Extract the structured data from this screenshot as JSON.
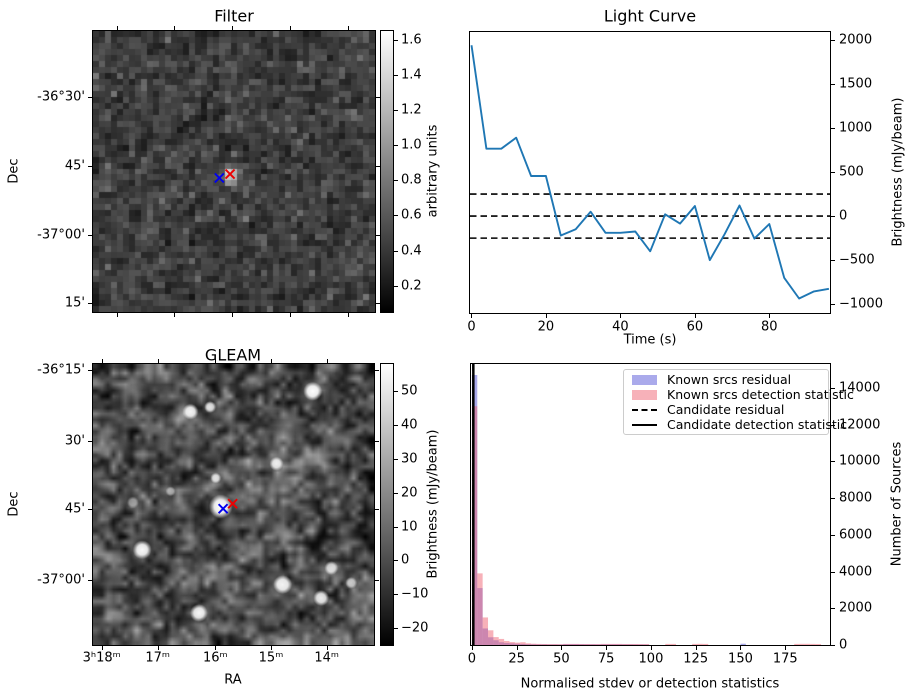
{
  "figure": {
    "background": "#ffffff"
  },
  "colors": {
    "line_blue": "#1f77b4",
    "marker_blue": "#0000ee",
    "marker_red": "#ee0000",
    "hist_blue": "rgba(85,85,215,0.5)",
    "hist_pink": "rgba(240,100,115,0.5)",
    "black": "#000000"
  },
  "chart_data": [
    {
      "type": "heatmap",
      "title": "Filter",
      "ylabel": "Dec",
      "description": "grayscale random-noise sky image, nearest-neighbour pixels, blue and red x markers near centre with a bright spot",
      "yticks": [
        {
          "label": "-36°30'",
          "f": 0.2349
        },
        {
          "label": "45'",
          "f": 0.4804
        },
        {
          "label": "-37°00'",
          "f": 0.726
        },
        {
          "label": "15'",
          "f": 0.968
        }
      ],
      "xticks_f": [
        0.084,
        0.2883,
        0.494,
        0.6997,
        0.9053
      ],
      "colorbar": {
        "label": "arbitrary units",
        "vmin": 0.05,
        "vmax": 1.65,
        "ticks": [
          1.6,
          1.4,
          1.2,
          1.0,
          0.8,
          0.6,
          0.4,
          0.2
        ]
      },
      "markers": {
        "blue": [
          0.448,
          0.523
        ],
        "red": [
          0.486,
          0.509
        ]
      },
      "bright_spot": [
        0.479,
        0.502
      ]
    },
    {
      "type": "line",
      "title": "Light Curve",
      "xlabel": "Time (s)",
      "ylabel": "Brightness (mJy/beam)",
      "xlim": [
        -0.4,
        96.3
      ],
      "ylim": [
        -1100,
        2090
      ],
      "xticks": [
        0,
        20,
        40,
        60,
        80
      ],
      "yticks": [
        2000,
        1500,
        1000,
        500,
        0,
        -500,
        -1000
      ],
      "ytick_labels": [
        "2000",
        "1500",
        "1000",
        "500",
        "0",
        "−500",
        "−1000"
      ],
      "x": [
        0,
        4,
        8,
        12,
        16,
        20,
        24,
        28,
        32,
        36,
        40,
        44,
        48,
        52,
        56,
        60,
        64,
        68,
        72,
        76,
        80,
        84,
        88,
        92,
        96
      ],
      "y": [
        1940,
        765,
        765,
        890,
        455,
        455,
        -220,
        -150,
        50,
        -190,
        -190,
        -175,
        -400,
        20,
        -85,
        115,
        -500,
        -205,
        120,
        -255,
        -90,
        -700,
        -935,
        -855,
        -825
      ],
      "hlines": [
        250,
        0,
        -250
      ]
    },
    {
      "type": "heatmap",
      "title": "GLEAM",
      "xlabel": "RA",
      "ylabel": "Dec",
      "description": "smoothed grayscale radio sky image with bright point sources, blue and red x markers on central source",
      "yticks": [
        {
          "label": "-36°15'",
          "f": 0.0214
        },
        {
          "label": "30'",
          "f": 0.273
        },
        {
          "label": "45'",
          "f": 0.516
        },
        {
          "label": "-37°00'",
          "f": 0.7687
        }
      ],
      "xticks": [
        {
          "label": "3ʰ18ᵐ",
          "f": 0.031
        },
        {
          "label": "17ᵐ",
          "f": 0.2302
        },
        {
          "label": "16ᵐ",
          "f": 0.4352
        },
        {
          "label": "15ᵐ",
          "f": 0.6334
        },
        {
          "label": "14ᵐ",
          "f": 0.8316
        }
      ],
      "colorbar": {
        "label": "Brightness (mJy/beam)",
        "vmin": -25,
        "vmax": 58,
        "ticks": [
          50,
          40,
          30,
          20,
          10,
          0,
          -10,
          -20
        ],
        "tick_labels": [
          "50",
          "40",
          "30",
          "20",
          "10",
          "0",
          "−10",
          "−20"
        ]
      },
      "markers": {
        "blue": [
          0.463,
          0.515
        ],
        "red": [
          0.497,
          0.497
        ]
      },
      "sources": [
        [
          0.455,
          0.507,
          12,
          1.0
        ],
        [
          0.782,
          0.097,
          9.5,
          1.0
        ],
        [
          0.347,
          0.17,
          8,
          0.95
        ],
        [
          0.417,
          0.153,
          6,
          0.85
        ],
        [
          0.653,
          0.355,
          7,
          0.9
        ],
        [
          0.437,
          0.406,
          5.5,
          0.85
        ],
        [
          0.175,
          0.661,
          9.5,
          0.97
        ],
        [
          0.377,
          0.886,
          9,
          0.95
        ],
        [
          0.675,
          0.785,
          9.5,
          0.95
        ],
        [
          0.812,
          0.833,
          8,
          0.9
        ],
        [
          0.848,
          0.726,
          7,
          0.8
        ],
        [
          0.919,
          0.779,
          6,
          0.7
        ],
        [
          0.276,
          0.453,
          5,
          0.55
        ],
        [
          0.142,
          0.493,
          6,
          0.5
        ]
      ]
    },
    {
      "type": "bar",
      "title": "",
      "xlabel": "Normalised stdev or detection statistics",
      "ylabel": "Number of Sources",
      "xlim": [
        -0.5,
        200
      ],
      "ylim": [
        0,
        15300
      ],
      "xticks": [
        0,
        25,
        50,
        75,
        100,
        125,
        150,
        175
      ],
      "yticks": [
        0,
        2000,
        4000,
        6000,
        8000,
        10000,
        12000,
        14000
      ],
      "bin_width": 3,
      "bins_note": "each entry is [bin_start, known_srcs_residual_count, known_srcs_detection_statistic_count]",
      "bins": [
        [
          0,
          14700,
          13000
        ],
        [
          3,
          3100,
          3900
        ],
        [
          6,
          900,
          1500
        ],
        [
          9,
          420,
          800
        ],
        [
          12,
          260,
          430
        ],
        [
          15,
          150,
          330
        ],
        [
          18,
          110,
          220
        ],
        [
          21,
          90,
          160
        ],
        [
          24,
          70,
          130
        ],
        [
          27,
          55,
          150
        ],
        [
          30,
          45,
          90
        ],
        [
          33,
          40,
          70
        ],
        [
          36,
          35,
          60
        ],
        [
          39,
          35,
          55
        ],
        [
          42,
          30,
          50
        ],
        [
          45,
          30,
          50
        ],
        [
          48,
          30,
          45
        ],
        [
          51,
          50,
          60
        ],
        [
          54,
          50,
          60
        ],
        [
          57,
          50,
          60
        ],
        [
          60,
          45,
          55
        ],
        [
          63,
          40,
          55
        ],
        [
          66,
          40,
          50
        ],
        [
          69,
          35,
          50
        ],
        [
          72,
          40,
          60
        ],
        [
          75,
          40,
          60
        ],
        [
          78,
          40,
          60
        ],
        [
          81,
          40,
          60
        ],
        [
          84,
          35,
          55
        ],
        [
          87,
          35,
          55
        ],
        [
          90,
          30,
          55
        ],
        [
          93,
          30,
          50
        ],
        [
          96,
          25,
          50
        ],
        [
          108,
          0,
          60
        ],
        [
          111,
          0,
          60
        ],
        [
          123,
          0,
          60
        ],
        [
          126,
          0,
          65
        ],
        [
          129,
          0,
          60
        ],
        [
          150,
          70,
          0
        ],
        [
          180,
          0,
          60
        ],
        [
          183,
          0,
          65
        ],
        [
          186,
          0,
          65
        ],
        [
          189,
          0,
          60
        ],
        [
          192,
          0,
          55
        ]
      ],
      "vlines": {
        "candidate_residual_dashed": 0.8,
        "candidate_detection_solid": 0.8
      },
      "legend": [
        {
          "sample": "patch-blue",
          "label": "Known srcs residual"
        },
        {
          "sample": "patch-pink",
          "label": "Known srcs detection statistic"
        },
        {
          "sample": "dashed-line",
          "label": "Candidate residual"
        },
        {
          "sample": "solid-line",
          "label": "Candidate detection statistic"
        }
      ]
    }
  ]
}
